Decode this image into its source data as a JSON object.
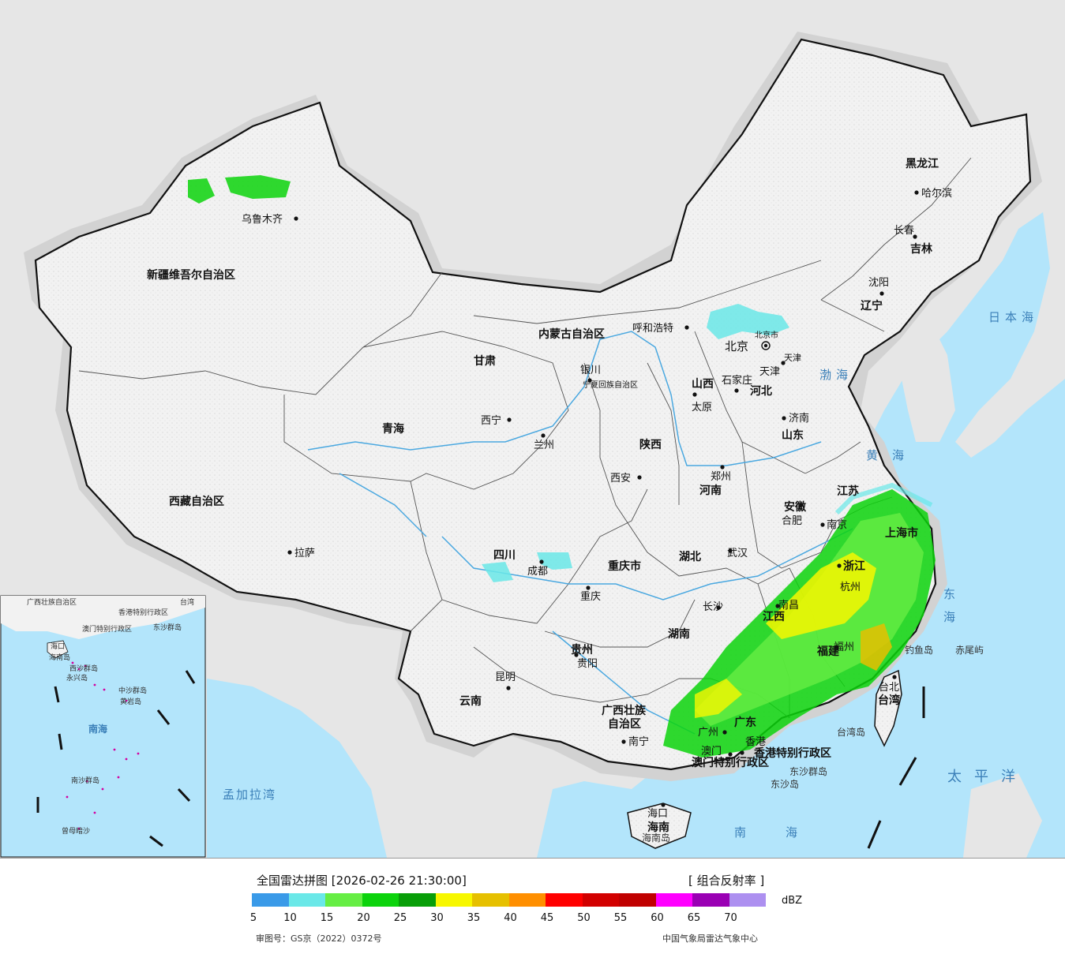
{
  "map": {
    "title": "全国雷达拼图",
    "timestamp": "[2026-02-26 21:30:00]",
    "product": "[ 组合反射率 ]",
    "unit": "dBZ",
    "approval_number": "审图号：GS京（2022）0372号",
    "credit": "中国气象局雷达气象中心",
    "colors": {
      "sea": "#b3e5fb",
      "outside": "#e6e6e6",
      "land": "#f4f4f4",
      "border": "#111111",
      "river": "#4aa8e0"
    }
  },
  "legend": {
    "colors": [
      "#3a9ae8",
      "#6ae8e8",
      "#66ee44",
      "#0cd30c",
      "#089e08",
      "#f7f700",
      "#e6c000",
      "#ff8f00",
      "#ff0000",
      "#d20000",
      "#c00000",
      "#ff00ff",
      "#9a00b4",
      "#ad90f0"
    ],
    "ticks": [
      "5",
      "10",
      "15",
      "20",
      "25",
      "30",
      "35",
      "40",
      "45",
      "50",
      "55",
      "60",
      "65",
      "70"
    ]
  },
  "provinces": [
    {
      "name": "新疆维吾尔自治区"
    },
    {
      "name": "西藏自治区"
    },
    {
      "name": "青海"
    },
    {
      "name": "甘肃"
    },
    {
      "name": "四川"
    },
    {
      "name": "云南"
    },
    {
      "name": "贵州"
    },
    {
      "name": "广西壮族"
    },
    {
      "name": "自治区"
    },
    {
      "name": "陕西"
    },
    {
      "name": "山西"
    },
    {
      "name": "河南"
    },
    {
      "name": "河北"
    },
    {
      "name": "山东"
    },
    {
      "name": "湖北"
    },
    {
      "name": "湖南"
    },
    {
      "name": "江西"
    },
    {
      "name": "安徽"
    },
    {
      "name": "江苏"
    },
    {
      "name": "浙江"
    },
    {
      "name": "福建"
    },
    {
      "name": "广东"
    },
    {
      "name": "海南"
    },
    {
      "name": "台湾"
    },
    {
      "name": "黑龙江"
    },
    {
      "name": "吉林"
    },
    {
      "name": "辽宁"
    },
    {
      "name": "内蒙古自治区"
    },
    {
      "name": "宁夏回族自治区"
    },
    {
      "name": "重庆市"
    },
    {
      "name": "上海市"
    },
    {
      "name": "北京市"
    },
    {
      "name": "天津"
    },
    {
      "name": "香港特别行政区"
    },
    {
      "name": "澳门特别行政区"
    }
  ],
  "cities": [
    {
      "name": "乌鲁木齐"
    },
    {
      "name": "拉萨"
    },
    {
      "name": "西宁"
    },
    {
      "name": "兰州"
    },
    {
      "name": "银川"
    },
    {
      "name": "成都"
    },
    {
      "name": "重庆"
    },
    {
      "name": "昆明"
    },
    {
      "name": "贵阳"
    },
    {
      "name": "南宁"
    },
    {
      "name": "西安"
    },
    {
      "name": "太原"
    },
    {
      "name": "郑州"
    },
    {
      "name": "石家庄"
    },
    {
      "name": "北京"
    },
    {
      "name": "天津"
    },
    {
      "name": "济南"
    },
    {
      "name": "武汉"
    },
    {
      "name": "长沙"
    },
    {
      "name": "南昌"
    },
    {
      "name": "合肥"
    },
    {
      "name": "南京"
    },
    {
      "name": "杭州"
    },
    {
      "name": "福州"
    },
    {
      "name": "广州"
    },
    {
      "name": "海口"
    },
    {
      "name": "台北"
    },
    {
      "name": "呼和浩特"
    },
    {
      "name": "哈尔滨"
    },
    {
      "name": "长春"
    },
    {
      "name": "沈阳"
    },
    {
      "name": "香港"
    },
    {
      "name": "澳门"
    }
  ],
  "seas": [
    {
      "name": "日本海"
    },
    {
      "name": "渤海"
    },
    {
      "name": "黄海"
    },
    {
      "name": "东海"
    },
    {
      "name": "太平洋"
    },
    {
      "name": "南海"
    },
    {
      "name": "孟加拉湾"
    }
  ],
  "islands": [
    {
      "name": "钓鱼岛"
    },
    {
      "name": "赤尾屿"
    },
    {
      "name": "台湾岛"
    },
    {
      "name": "海南岛"
    },
    {
      "name": "东沙群岛"
    },
    {
      "name": "东沙岛"
    }
  ],
  "inset": {
    "labels": [
      "广西壮族自治区",
      "香港特别行政区",
      "澳门特别行政区",
      "台湾",
      "东沙群岛",
      "海口",
      "海南岛",
      "西沙群岛",
      "永兴岛",
      "中沙群岛",
      "黄岩岛",
      "南海",
      "南沙群岛",
      "曾母暗沙"
    ]
  }
}
